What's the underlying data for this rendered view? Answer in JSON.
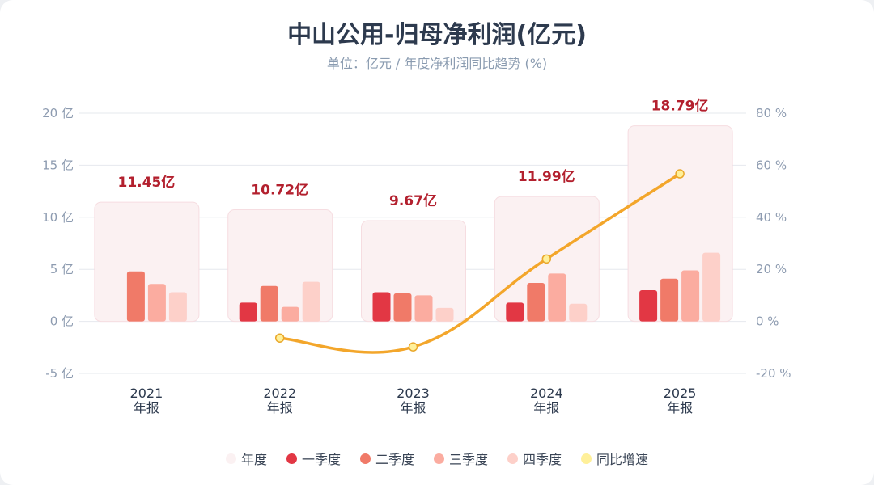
{
  "chart_data": {
    "type": "bar",
    "title": "中山公用-归母净利润(亿元)",
    "subtitle": "单位：亿元 / 年度净利润同比趋势 (%)",
    "categories": [
      "2021",
      "2022",
      "2023",
      "2024",
      "2025"
    ],
    "category_sublabel": "年报",
    "annual": {
      "name": "年度",
      "values": [
        11.45,
        10.72,
        9.67,
        11.99,
        18.79
      ],
      "labels": [
        "11.45亿",
        "10.72亿",
        "9.67亿",
        "11.99亿",
        "18.79亿"
      ],
      "color": "#fbf1f2"
    },
    "series": [
      {
        "name": "一季度",
        "values": [
          null,
          1.8,
          2.8,
          1.8,
          3.0
        ],
        "color": "#e23744"
      },
      {
        "name": "二季度",
        "values": [
          4.8,
          3.4,
          2.7,
          3.7,
          4.1
        ],
        "color": "#f07a68"
      },
      {
        "name": "三季度",
        "values": [
          3.6,
          1.4,
          2.5,
          4.6,
          4.9
        ],
        "color": "#fbaca0"
      },
      {
        "name": "四季度",
        "values": [
          2.8,
          3.8,
          1.3,
          1.7,
          6.6
        ],
        "color": "#fdd0c9"
      }
    ],
    "yoy": {
      "name": "同比增速",
      "values": [
        null,
        -6.4,
        -9.8,
        24.0,
        56.7
      ],
      "color": "#f3a62b",
      "marker_color": "#fff09a"
    },
    "ylim": [
      -5,
      20
    ],
    "yticks": [
      "-5 亿",
      "0 亿",
      "5 亿",
      "10 亿",
      "15 亿",
      "20 亿"
    ],
    "y2lim": [
      -20,
      80
    ],
    "y2ticks": [
      "-20 %",
      "0 %",
      "20 %",
      "40 %",
      "60 %",
      "80 %"
    ],
    "grid": true,
    "legend_position": "bottom"
  }
}
